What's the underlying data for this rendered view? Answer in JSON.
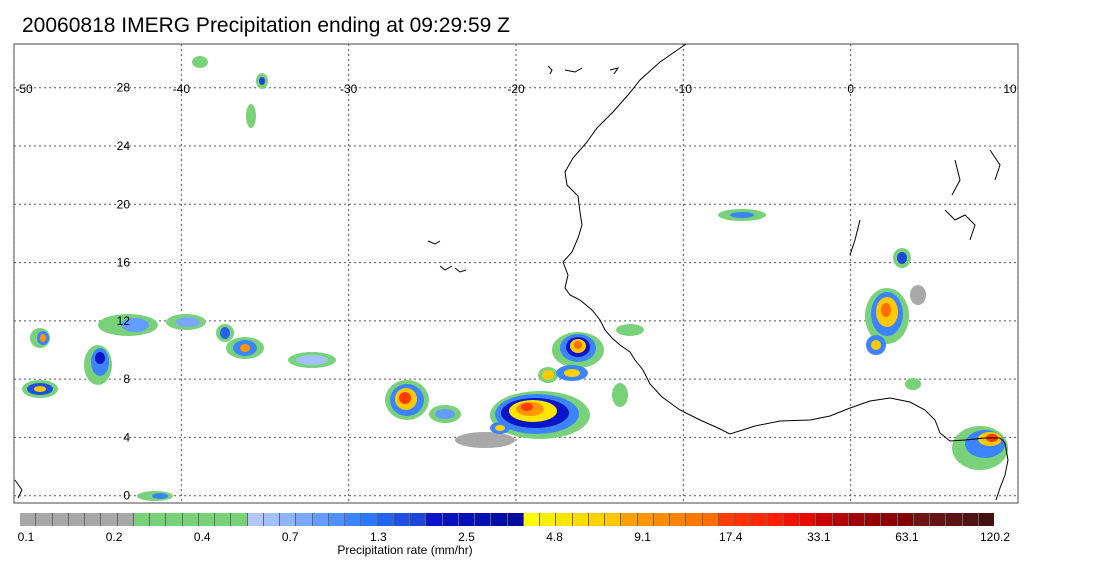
{
  "title": "20060818 IMERG Precipitation ending at 09:29:59 Z",
  "map": {
    "lon_range": [
      -50,
      10
    ],
    "lat_range": [
      -0.5,
      31
    ],
    "lon_ticks": [
      "-50",
      "-40",
      "-30",
      "-20",
      "-10",
      "0",
      "10"
    ],
    "lat_ticks": [
      "0",
      "4",
      "8",
      "12",
      "16",
      "20",
      "24",
      "28"
    ],
    "gridlines": "dotted",
    "coastline_color": "#000000"
  },
  "colorbar": {
    "title": "Precipitation rate (mm/hr)",
    "labels": [
      "0.1",
      "0.2",
      "0.4",
      "0.7",
      "1.3",
      "2.5",
      "4.8",
      "9.1",
      "17.4",
      "33.1",
      "63.1",
      "120.2"
    ],
    "colors": [
      "#a8a8a8",
      "#a8a8a8",
      "#a8a8a8",
      "#a8a8a8",
      "#a8a8a8",
      "#a8a8a8",
      "#a8a8a8",
      "#79d279",
      "#79d279",
      "#79d279",
      "#79d279",
      "#79d279",
      "#79d279",
      "#79d279",
      "#b4c8ff",
      "#a0c0ff",
      "#8cb4ff",
      "#78a8ff",
      "#649cff",
      "#5090ff",
      "#3c84ff",
      "#2a78ff",
      "#2264f0",
      "#1e50e6",
      "#1c46dc",
      "#0a14c8",
      "#0812c0",
      "#0610b8",
      "#0510b0",
      "#040ea8",
      "#030ca0",
      "#ffff00",
      "#fff000",
      "#ffe600",
      "#ffdc00",
      "#ffd200",
      "#ffc800",
      "#ffa000",
      "#ff9600",
      "#ff8c00",
      "#ff8200",
      "#ff7800",
      "#ff6e00",
      "#ff3c00",
      "#ff3200",
      "#ff2800",
      "#ff1e00",
      "#f01400",
      "#e60a00",
      "#c80000",
      "#b40000",
      "#a00000",
      "#960000",
      "#8c0000",
      "#820000",
      "#6e1414",
      "#641414",
      "#5a1414",
      "#501414",
      "#461010"
    ]
  }
}
